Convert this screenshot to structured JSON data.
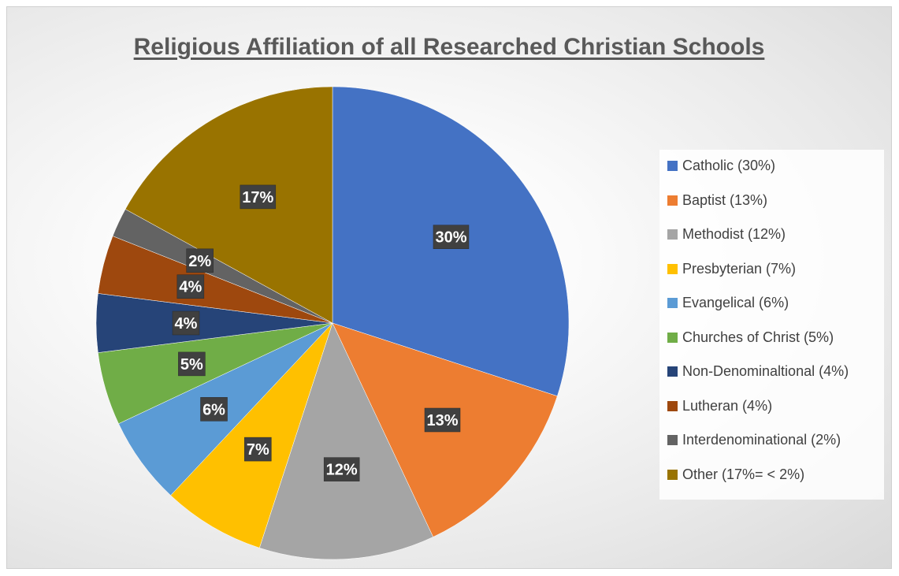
{
  "chart_data": {
    "type": "pie",
    "title": "Religious Affiliation of all Researched Christian Schools",
    "slices": [
      {
        "label": "Catholic (30%)",
        "value": 30,
        "data_label": "30%",
        "color": "#4472C4"
      },
      {
        "label": "Baptist (13%)",
        "value": 13,
        "data_label": "13%",
        "color": "#ED7D31"
      },
      {
        "label": "Methodist (12%)",
        "value": 12,
        "data_label": "12%",
        "color": "#A5A5A5"
      },
      {
        "label": "Presbyterian (7%)",
        "value": 7,
        "data_label": "7%",
        "color": "#FFC000"
      },
      {
        "label": "Evangelical (6%)",
        "value": 6,
        "data_label": "6%",
        "color": "#5B9BD5"
      },
      {
        "label": "Churches of Christ (5%)",
        "value": 5,
        "data_label": "5%",
        "color": "#70AD47"
      },
      {
        "label": "Non-Denominaltional (4%)",
        "value": 4,
        "data_label": "4%",
        "color": "#264478"
      },
      {
        "label": "Lutheran (4%)",
        "value": 4,
        "data_label": "4%",
        "color": "#9E480E"
      },
      {
        "label": "Interdenominational (2%)",
        "value": 2,
        "data_label": "2%",
        "color": "#636363"
      },
      {
        "label": "Other (17%= < 2%)",
        "value": 17,
        "data_label": "17%",
        "color": "#997300"
      }
    ],
    "legend_position": "right"
  }
}
